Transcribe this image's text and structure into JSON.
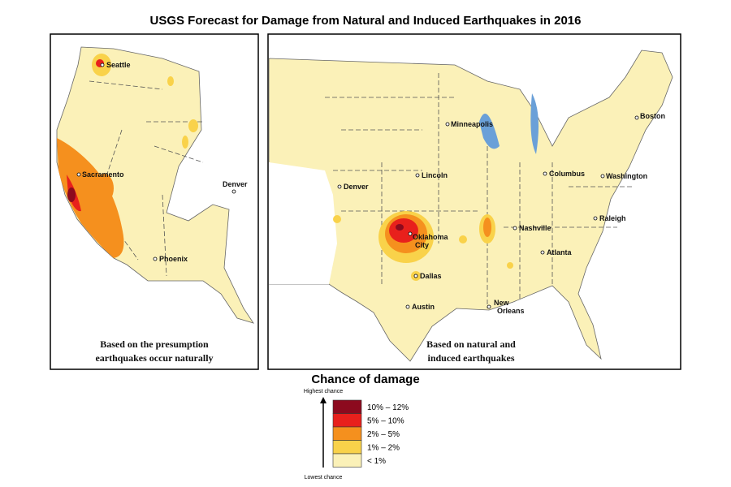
{
  "title": "USGS Forecast for Damage from Natural and Induced Earthquakes in 2016",
  "panels": [
    {
      "caption": [
        "Based on the presumption",
        "earthquakes occur naturally"
      ],
      "cities": [
        {
          "lines": [
            "Seattle"
          ]
        },
        {
          "lines": [
            "Sacramento"
          ]
        },
        {
          "lines": [
            "Denver"
          ]
        },
        {
          "lines": [
            "Phoenix"
          ]
        }
      ]
    },
    {
      "caption": [
        "Based on natural and",
        "induced earthquakes"
      ],
      "cities": [
        {
          "lines": [
            "Minneapolis"
          ]
        },
        {
          "lines": [
            "Boston"
          ]
        },
        {
          "lines": [
            "Lincoln"
          ]
        },
        {
          "lines": [
            "Columbus"
          ]
        },
        {
          "lines": [
            "Washington"
          ]
        },
        {
          "lines": [
            "Denver"
          ]
        },
        {
          "lines": [
            "Nashville"
          ]
        },
        {
          "lines": [
            "Raleigh"
          ]
        },
        {
          "lines": [
            "Oklahoma",
            "City"
          ]
        },
        {
          "lines": [
            "Dallas"
          ]
        },
        {
          "lines": [
            "Atlanta"
          ]
        },
        {
          "lines": [
            "Austin"
          ]
        },
        {
          "lines": [
            "New",
            "Orleans"
          ]
        }
      ]
    }
  ],
  "legend": {
    "title": "Chance of damage",
    "highest": "Highest chance",
    "lowest": "Lowest chance",
    "items": [
      {
        "label": "10% – 12%",
        "color": "#8c0a1e"
      },
      {
        "label": "5% – 10%",
        "color": "#e8201c"
      },
      {
        "label": "2% – 5%",
        "color": "#f5901e"
      },
      {
        "label": "1% – 2%",
        "color": "#f9d24a"
      },
      {
        "label": "< 1%",
        "color": "#fbf1b8"
      }
    ]
  }
}
